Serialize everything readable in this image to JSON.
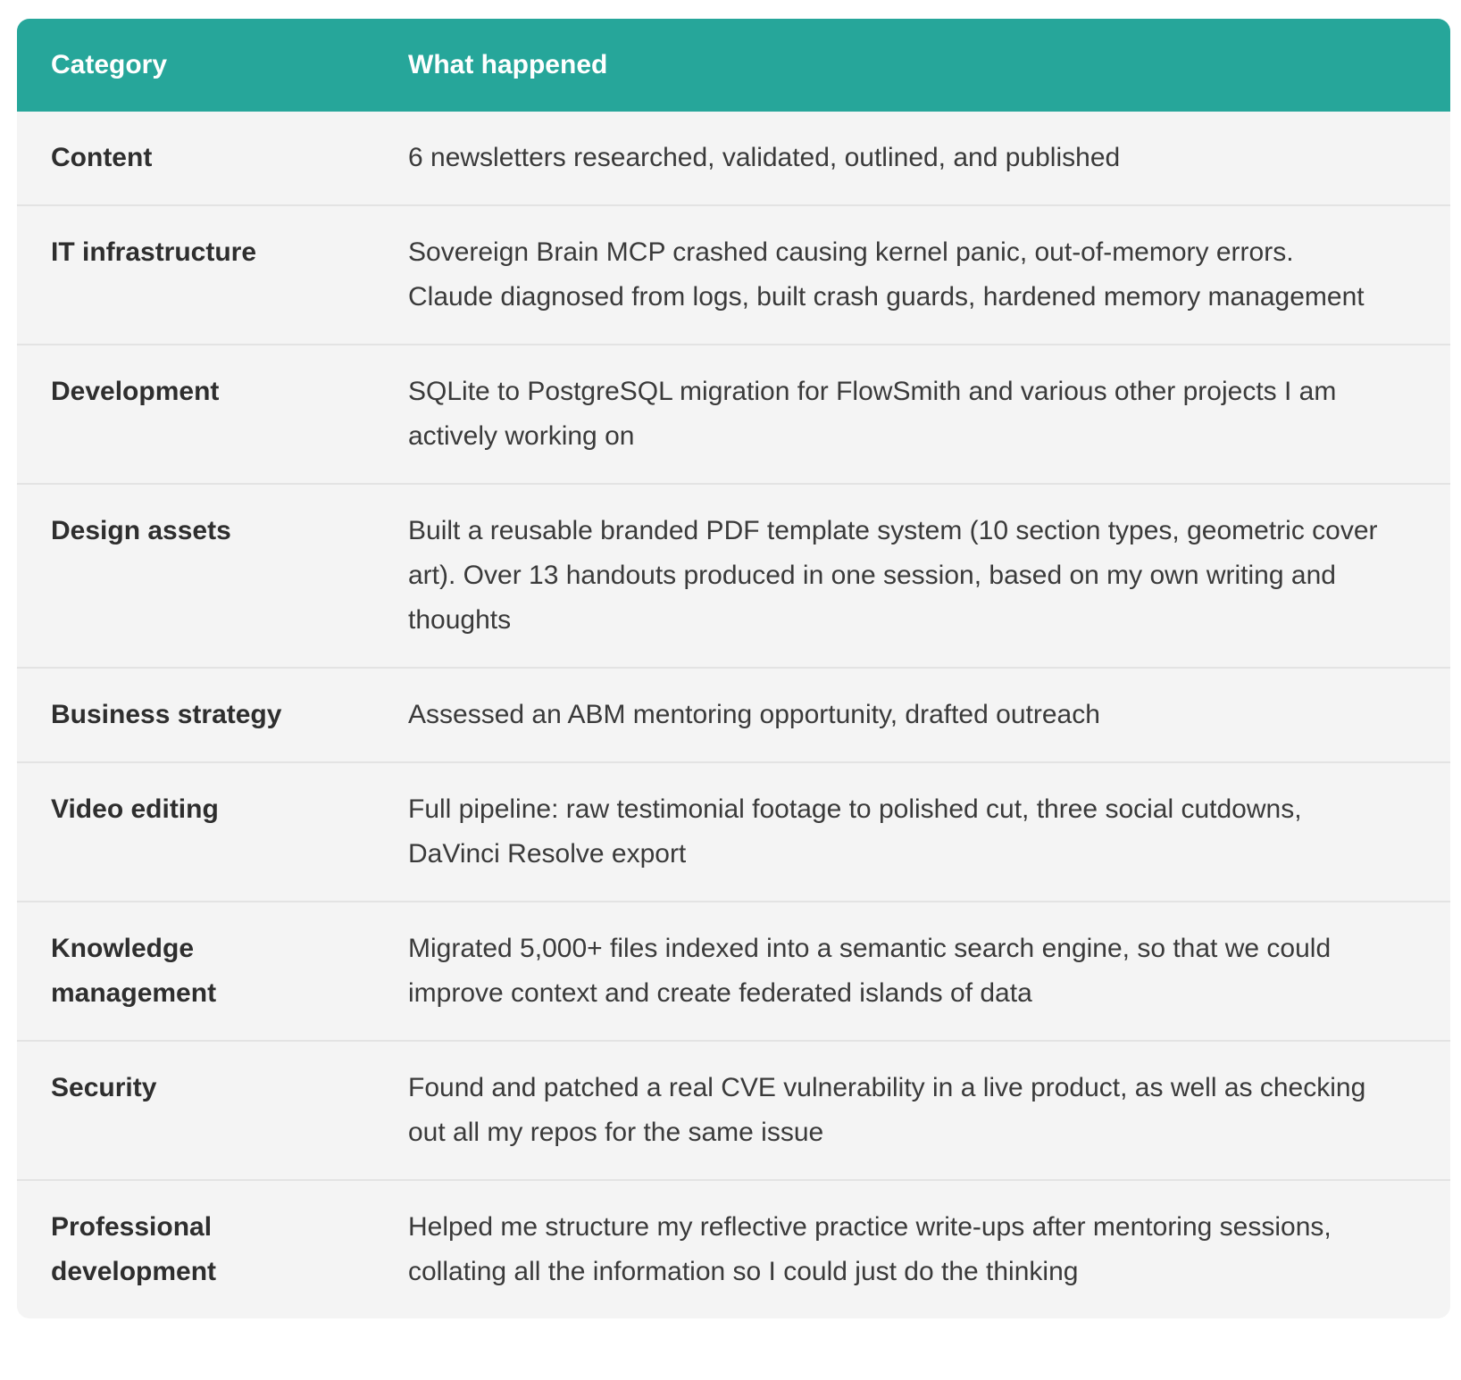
{
  "page": {
    "background": "#ffffff"
  },
  "table": {
    "colors": {
      "header_bg": "#26a69a",
      "header_text": "#ffffff",
      "row_bg": "#f4f4f4",
      "divider": "#e3e3e3",
      "text": "#3a3a3a",
      "category_text": "#2e2e2e"
    },
    "header": {
      "category": "Category",
      "what_happened": "What happened"
    },
    "rows": [
      {
        "category": "Content",
        "what_happened": "6 newsletters researched, validated, outlined, and published"
      },
      {
        "category": "IT infrastructure",
        "what_happened": "Sovereign Brain MCP crashed causing kernel panic, out-of-memory errors. Claude diagnosed from logs, built crash guards, hardened memory management"
      },
      {
        "category": "Development",
        "what_happened": "SQLite to PostgreSQL migration for FlowSmith and various other projects I am actively working on"
      },
      {
        "category": "Design assets",
        "what_happened": "Built a reusable branded PDF template system (10 section types, geometric cover art). Over 13 handouts produced in one session, based on my own writing and thoughts"
      },
      {
        "category": "Business strategy",
        "what_happened": "Assessed an ABM mentoring opportunity, drafted outreach"
      },
      {
        "category": "Video editing",
        "what_happened": "Full pipeline: raw testimonial footage to polished cut, three social cutdowns, DaVinci Resolve export"
      },
      {
        "category": "Knowledge management",
        "what_happened": "Migrated 5,000+ files indexed into a semantic search engine, so that we could improve context and create federated islands of data"
      },
      {
        "category": "Security",
        "what_happened": "Found and patched a real CVE vulnerability in a live product, as well as checking out all my repos for the same issue"
      },
      {
        "category": "Professional development",
        "what_happened": "Helped me structure my reflective practice write-ups after mentoring sessions, collating all the information so I could just do the thinking"
      }
    ]
  }
}
